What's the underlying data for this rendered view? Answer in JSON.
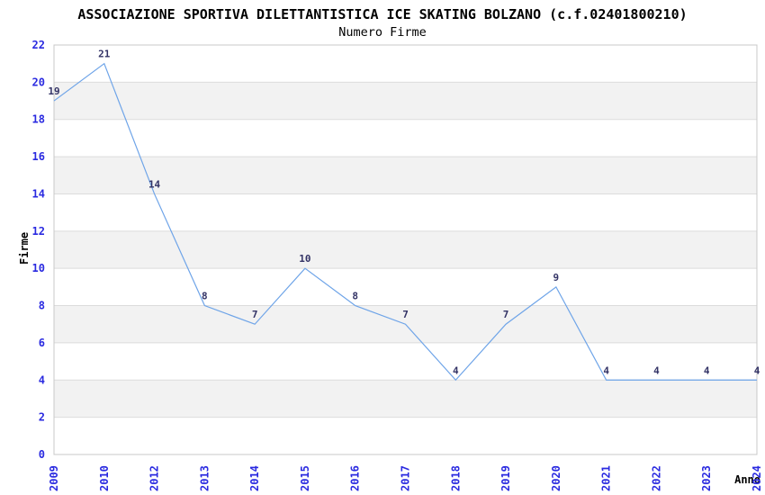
{
  "header": {
    "title": "ASSOCIAZIONE SPORTIVA DILETTANTISTICA ICE SKATING BOLZANO (c.f.02401800210)",
    "subtitle": "Numero Firme"
  },
  "chart_data": {
    "type": "line",
    "title": "ASSOCIAZIONE SPORTIVA DILETTANTISTICA ICE SKATING BOLZANO (c.f.02401800210)",
    "subtitle": "Numero Firme",
    "xlabel": "Anno",
    "ylabel": "Firme",
    "categories": [
      "2009",
      "2010",
      "2012",
      "2013",
      "2014",
      "2015",
      "2016",
      "2017",
      "2018",
      "2019",
      "2020",
      "2021",
      "2022",
      "2023",
      "2024"
    ],
    "values": [
      19,
      21,
      14,
      8,
      7,
      10,
      8,
      7,
      4,
      7,
      9,
      4,
      4,
      4,
      4
    ],
    "ylim": [
      0,
      22
    ],
    "ytick_step": 2,
    "grid": true,
    "legend": "none",
    "point_labels_visible": true,
    "colors": {
      "line": "#6ea4e8",
      "tick_label": "#2a2ae0",
      "value_label": "#333366",
      "band_fill": "#f2f2f2",
      "grid_line": "#dcdcdc",
      "frame": "#c8c8c8",
      "background": "#ffffff",
      "title_text": "#000000"
    }
  }
}
